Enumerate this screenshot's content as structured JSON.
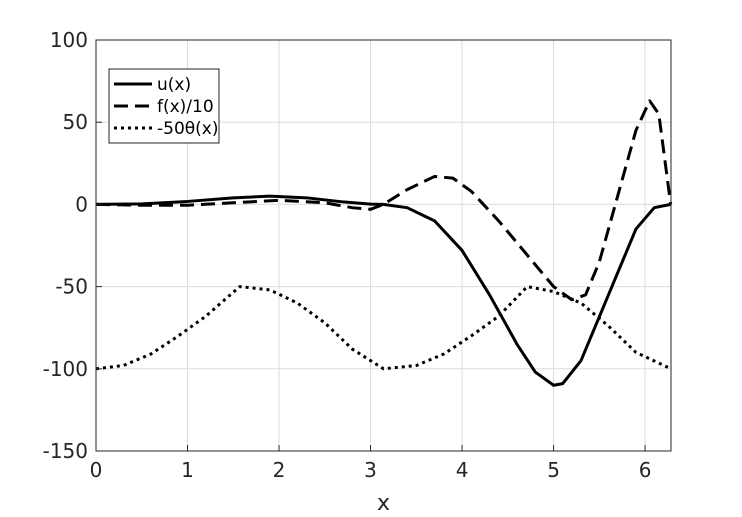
{
  "chart_data": {
    "type": "line",
    "title": "",
    "xlabel": "x",
    "ylabel": "",
    "xlim": [
      0,
      6.2832
    ],
    "ylim": [
      -150,
      100
    ],
    "xticks": [
      0,
      1,
      2,
      3,
      4,
      5,
      6
    ],
    "yticks": [
      -150,
      -100,
      -50,
      0,
      50,
      100
    ],
    "grid": true,
    "legend_position": "top-left",
    "colors": {
      "line": "#000000",
      "axis": "#262626",
      "grid": "#dcdcdc"
    },
    "series": [
      {
        "name": "u(x)",
        "style": "solid",
        "x": [
          0,
          0.5,
          1.0,
          1.5,
          1.9,
          2.3,
          2.7,
          3.0,
          3.14,
          3.4,
          3.7,
          4.0,
          4.3,
          4.6,
          4.8,
          5.0,
          5.1,
          5.3,
          5.6,
          5.9,
          6.1,
          6.28
        ],
        "y": [
          0,
          0.3,
          1.8,
          4.0,
          5.0,
          4.0,
          1.5,
          0.2,
          0,
          -2,
          -10,
          -28,
          -55,
          -85,
          -102,
          -110,
          -109,
          -95,
          -55,
          -15,
          -2,
          0
        ]
      },
      {
        "name": "f(x)/10",
        "style": "dashed",
        "x": [
          0,
          0.5,
          1.0,
          1.5,
          2.0,
          2.5,
          2.8,
          3.0,
          3.14,
          3.4,
          3.7,
          3.9,
          4.1,
          4.4,
          4.7,
          5.0,
          5.2,
          5.35,
          5.5,
          5.7,
          5.9,
          6.05,
          6.15,
          6.28
        ],
        "y": [
          0,
          -0.5,
          -0.5,
          1.0,
          2.5,
          1.0,
          -2,
          -3,
          0,
          9,
          17,
          16,
          8,
          -10,
          -30,
          -50,
          -58,
          -55,
          -35,
          5,
          45,
          63,
          55,
          0
        ]
      },
      {
        "name": "-50θ(x)",
        "style": "dotted",
        "x": [
          0,
          0.3,
          0.6,
          0.9,
          1.2,
          1.5708,
          1.9,
          2.2,
          2.5,
          2.8,
          3.1416,
          3.5,
          3.8,
          4.1,
          4.4,
          4.7124,
          5.0,
          5.3,
          5.6,
          5.9,
          6.2832
        ],
        "y": [
          -100,
          -98,
          -91,
          -80,
          -68,
          -50,
          -52,
          -60,
          -72,
          -88,
          -100,
          -98,
          -91,
          -80,
          -68,
          -50,
          -53,
          -60,
          -74,
          -90,
          -100
        ]
      }
    ]
  }
}
